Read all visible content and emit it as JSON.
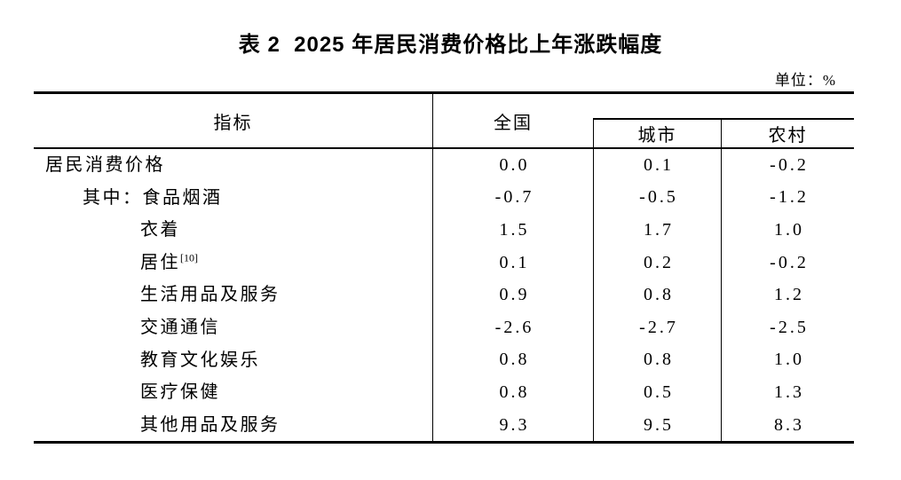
{
  "title": "表 2  2025 年居民消费价格比上年涨跌幅度",
  "unit_label": "单位：%",
  "colors": {
    "background": "#ffffff",
    "text": "#000000",
    "rule": "#000000"
  },
  "table": {
    "headers": {
      "indicator": "指标",
      "national": "全国",
      "urban": "城市",
      "rural": "农村"
    },
    "rows": [
      {
        "label": "居民消费价格",
        "sup": "",
        "indent": 0,
        "national": "0.0",
        "urban": "0.1",
        "rural": "-0.2"
      },
      {
        "label": "其中：食品烟酒",
        "sup": "",
        "indent": 1,
        "national": "-0.7",
        "urban": "-0.5",
        "rural": "-1.2"
      },
      {
        "label": "衣着",
        "sup": "",
        "indent": 2,
        "national": "1.5",
        "urban": "1.7",
        "rural": "1.0"
      },
      {
        "label": "居住",
        "sup": "[10]",
        "indent": 2,
        "national": "0.1",
        "urban": "0.2",
        "rural": "-0.2"
      },
      {
        "label": "生活用品及服务",
        "sup": "",
        "indent": 2,
        "national": "0.9",
        "urban": "0.8",
        "rural": "1.2"
      },
      {
        "label": "交通通信",
        "sup": "",
        "indent": 2,
        "national": "-2.6",
        "urban": "-2.7",
        "rural": "-2.5"
      },
      {
        "label": "教育文化娱乐",
        "sup": "",
        "indent": 2,
        "national": "0.8",
        "urban": "0.8",
        "rural": "1.0"
      },
      {
        "label": "医疗保健",
        "sup": "",
        "indent": 2,
        "national": "0.8",
        "urban": "0.5",
        "rural": "1.3"
      },
      {
        "label": "其他用品及服务",
        "sup": "",
        "indent": 2,
        "national": "9.3",
        "urban": "9.5",
        "rural": "8.3"
      }
    ]
  }
}
